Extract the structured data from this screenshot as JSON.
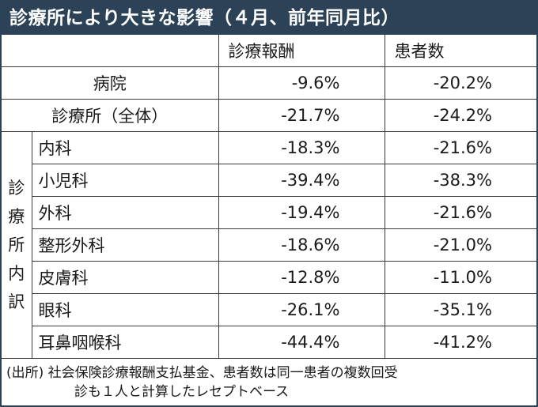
{
  "title": "診療所により大きな影響（４月、前年同月比）",
  "header": {
    "empty": "",
    "col1": "診療報酬",
    "col2": "患者数"
  },
  "rows": [
    {
      "label": "病院",
      "reward": "-9.6%",
      "patients": "-20.2%"
    },
    {
      "label": "診療所（全体）",
      "reward": "-21.7%",
      "patients": "-24.2%"
    }
  ],
  "breakdown": {
    "group_label_chars": [
      "診",
      "療",
      "所",
      "内",
      "訳"
    ],
    "rows": [
      {
        "label": "内科",
        "reward": "-18.3%",
        "patients": "-21.6%"
      },
      {
        "label": "小児科",
        "reward": "-39.4%",
        "patients": "-38.3%"
      },
      {
        "label": "外科",
        "reward": "-19.4%",
        "patients": "-21.6%"
      },
      {
        "label": "整形外科",
        "reward": "-18.6%",
        "patients": "-21.0%"
      },
      {
        "label": "皮膚科",
        "reward": "-12.8%",
        "patients": "-11.0%"
      },
      {
        "label": "眼科",
        "reward": "-26.1%",
        "patients": "-35.1%"
      },
      {
        "label": "耳鼻咽喉科",
        "reward": "-44.4%",
        "patients": "-41.2%"
      }
    ]
  },
  "footnote": {
    "line1": "(出所) 社会保険診療報酬支払基金、患者数は同一患者の複数回受",
    "line2": "診も１人と計算したレセプトベース"
  }
}
